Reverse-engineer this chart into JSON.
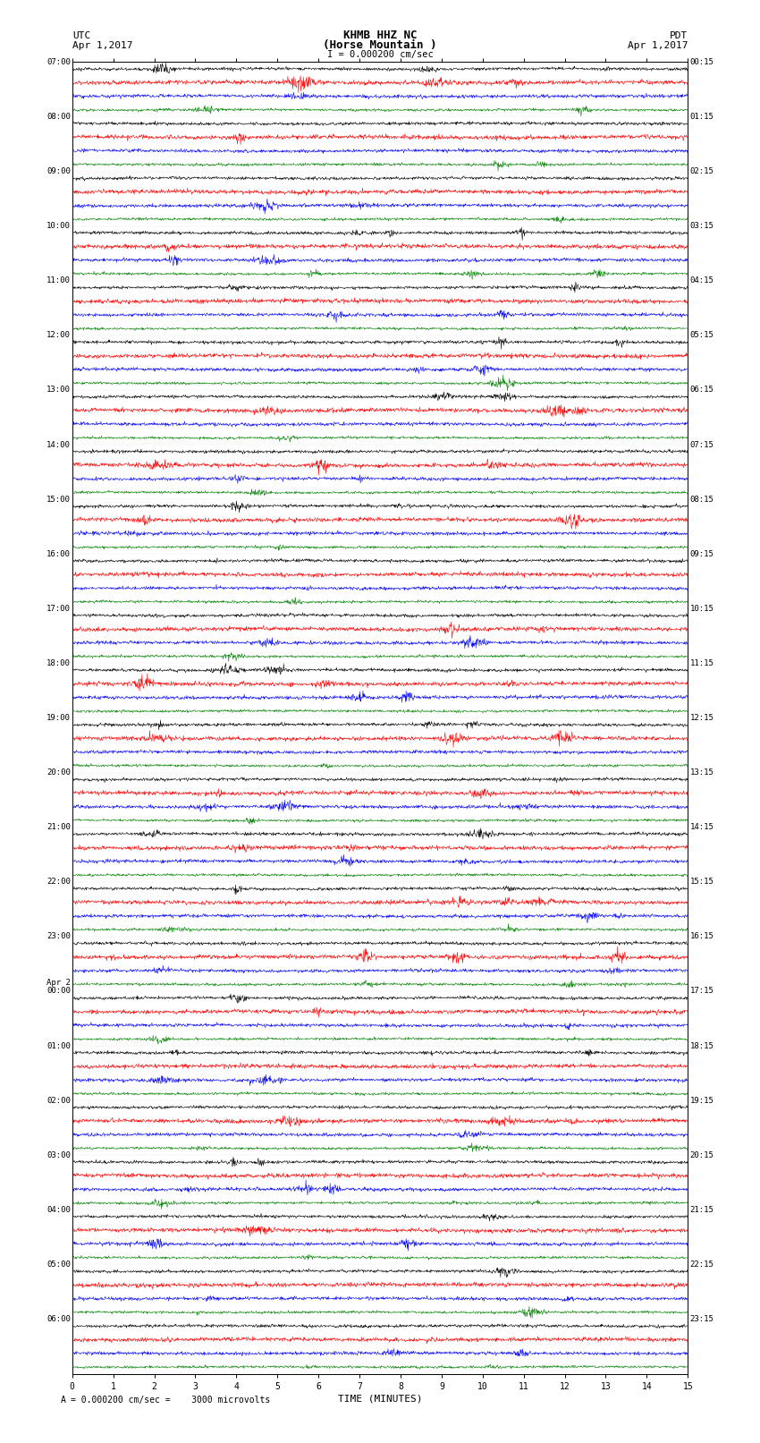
{
  "title_line1": "KHMB HHZ NC",
  "title_line2": "(Horse Mountain )",
  "title_line3": "I = 0.000200 cm/sec",
  "left_header": "UTC",
  "left_date": "Apr 1,2017",
  "right_header": "PDT",
  "right_date": "Apr 1,2017",
  "xlabel": "TIME (MINUTES)",
  "footer_text": "= 0.000200 cm/sec =    3000 microvolts",
  "xlim": [
    0,
    15
  ],
  "fig_width": 8.5,
  "fig_height": 16.13,
  "dpi": 100,
  "bg_color": "#ffffff",
  "trace_colors": [
    "#000000",
    "#ff0000",
    "#0000ff",
    "#008000"
  ],
  "left_times_utc": [
    "07:00",
    "08:00",
    "09:00",
    "10:00",
    "11:00",
    "12:00",
    "13:00",
    "14:00",
    "15:00",
    "16:00",
    "17:00",
    "18:00",
    "19:00",
    "20:00",
    "21:00",
    "22:00",
    "23:00",
    "Apr 2\n00:00",
    "01:00",
    "02:00",
    "03:00",
    "04:00",
    "05:00",
    "06:00"
  ],
  "right_times_pdt": [
    "00:15",
    "01:15",
    "02:15",
    "03:15",
    "04:15",
    "05:15",
    "06:15",
    "07:15",
    "08:15",
    "09:15",
    "10:15",
    "11:15",
    "12:15",
    "13:15",
    "14:15",
    "15:15",
    "16:15",
    "17:15",
    "18:15",
    "19:15",
    "20:15",
    "21:15",
    "22:15",
    "23:15"
  ],
  "noise_amp_black": 0.055,
  "noise_amp_red": 0.075,
  "noise_amp_blue": 0.06,
  "noise_amp_green": 0.045,
  "samples_per_row": 1500,
  "n_hours": 24,
  "traces_per_hour": 4
}
